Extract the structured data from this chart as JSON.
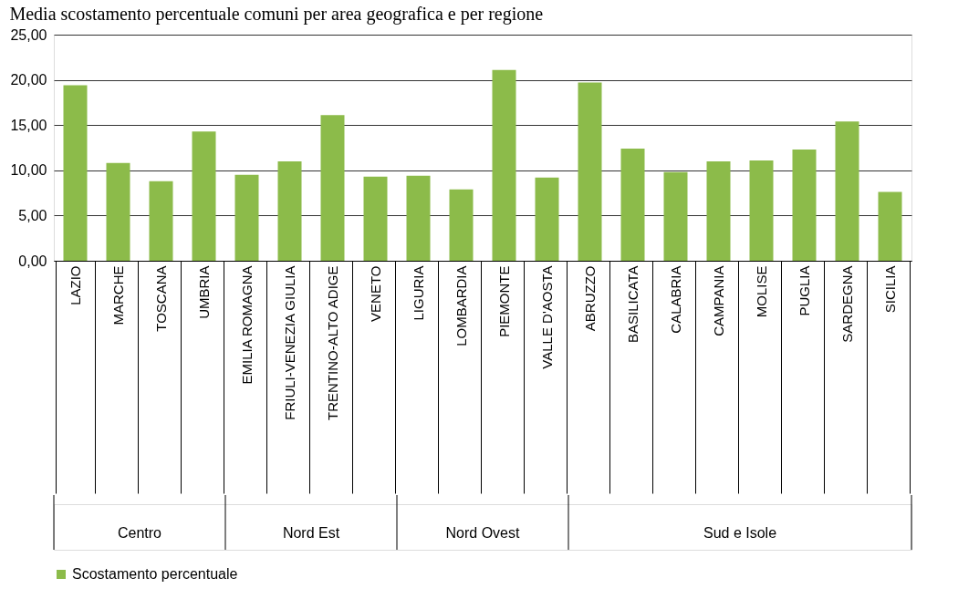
{
  "chart_data": {
    "type": "bar",
    "title": "Media scostamento percentuale comuni per area geografica e per regione",
    "categories": [
      "LAZIO",
      "MARCHE",
      "TOSCANA",
      "UMBRIA",
      "EMILIA ROMAGNA",
      "FRIULI-VENEZIA GIULIA",
      "TRENTINO-ALTO ADIGE",
      "VENETO",
      "LIGURIA",
      "LOMBARDIA",
      "PIEMONTE",
      "VALLE D'AOSTA",
      "ABRUZZO",
      "BASILICATA",
      "CALABRIA",
      "CAMPANIA",
      "MOLISE",
      "PUGLIA",
      "SARDEGNA",
      "SICILIA"
    ],
    "series": [
      {
        "name": "Scostamento percentuale",
        "color": "#8cbb4a",
        "values": [
          19.4,
          10.8,
          8.8,
          14.3,
          9.5,
          11.0,
          16.1,
          9.3,
          9.4,
          7.9,
          21.1,
          9.2,
          19.7,
          12.4,
          9.8,
          11.0,
          11.1,
          12.3,
          15.4,
          7.6
        ]
      }
    ],
    "ylim": [
      0,
      25
    ],
    "yticks": [
      {
        "value": 0,
        "label": "0,00"
      },
      {
        "value": 5,
        "label": "5,00"
      },
      {
        "value": 10,
        "label": "10,00"
      },
      {
        "value": 15,
        "label": "15,00"
      },
      {
        "value": 20,
        "label": "20,00"
      },
      {
        "value": 25,
        "label": "25,00"
      }
    ],
    "grid": "y",
    "legend": "bottom",
    "annotations": [
      "Centro",
      "Nord Est",
      "Nord Ovest",
      "Sud e Isole"
    ]
  }
}
